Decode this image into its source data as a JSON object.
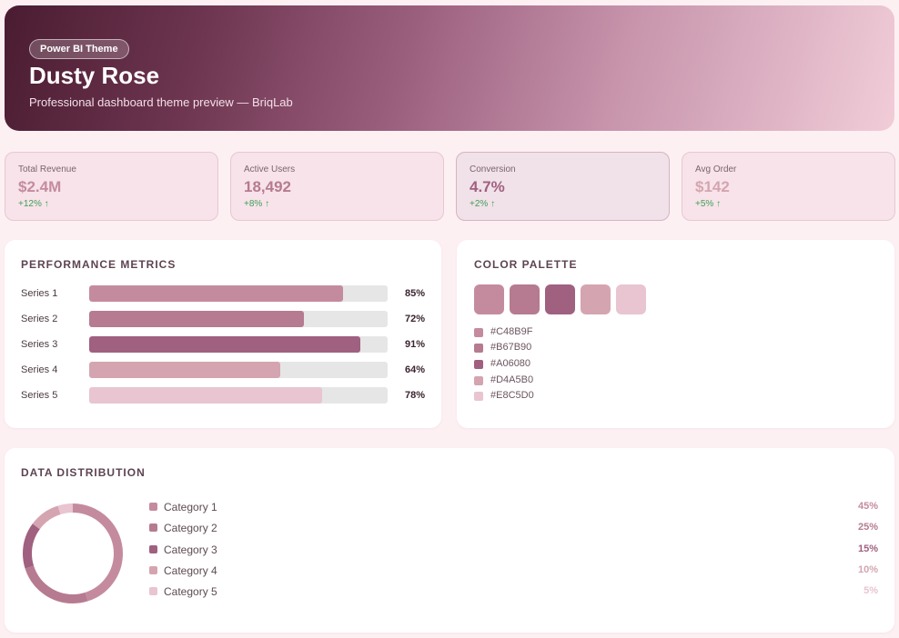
{
  "header": {
    "badge": "Power BI Theme",
    "title": "Dusty Rose",
    "subtitle": "Professional dashboard theme preview — BriqLab"
  },
  "kpis": [
    {
      "label": "Total Revenue",
      "value": "$2.4M",
      "change": "+12% ↑",
      "color": "#C48B9F"
    },
    {
      "label": "Active Users",
      "value": "18,492",
      "change": "+8% ↑",
      "color": "#B67B90"
    },
    {
      "label": "Conversion",
      "value": "4.7%",
      "change": "+2% ↑",
      "color": "#A06080"
    },
    {
      "label": "Avg Order",
      "value": "$142",
      "change": "+5% ↑",
      "color": "#D4A5B0"
    }
  ],
  "performance": {
    "title": "Performance Metrics",
    "rows": [
      {
        "label": "Series 1",
        "value": 85,
        "pct": "85%",
        "color": "#C48B9F"
      },
      {
        "label": "Series 2",
        "value": 72,
        "pct": "72%",
        "color": "#B67B90"
      },
      {
        "label": "Series 3",
        "value": 91,
        "pct": "91%",
        "color": "#A06080"
      },
      {
        "label": "Series 4",
        "value": 64,
        "pct": "64%",
        "color": "#D4A5B0"
      },
      {
        "label": "Series 5",
        "value": 78,
        "pct": "78%",
        "color": "#E8C5D0"
      }
    ]
  },
  "palette": {
    "title": "Color Palette",
    "colors": [
      "#C48B9F",
      "#B67B90",
      "#A06080",
      "#D4A5B0",
      "#E8C5D0"
    ],
    "hex_labels": [
      "#C48B9F",
      "#B67B90",
      "#A06080",
      "#D4A5B0",
      "#E8C5D0"
    ]
  },
  "distribution": {
    "title": "Data Distribution",
    "categories": [
      {
        "label": "Category 1",
        "value": 45,
        "pct": "45%",
        "color": "#C48B9F"
      },
      {
        "label": "Category 2",
        "value": 25,
        "pct": "25%",
        "color": "#B67B90"
      },
      {
        "label": "Category 3",
        "value": 15,
        "pct": "15%",
        "color": "#A06080"
      },
      {
        "label": "Category 4",
        "value": 10,
        "pct": "10%",
        "color": "#D4A5B0"
      },
      {
        "label": "Category 5",
        "value": 5,
        "pct": "5%",
        "color": "#E8C5D0"
      }
    ]
  },
  "chart_data": {
    "type": "pie",
    "categories": [
      "Category 1",
      "Category 2",
      "Category 3",
      "Category 4",
      "Category 5"
    ],
    "values": [
      45,
      25,
      15,
      10,
      5
    ],
    "title": "Data Distribution"
  }
}
